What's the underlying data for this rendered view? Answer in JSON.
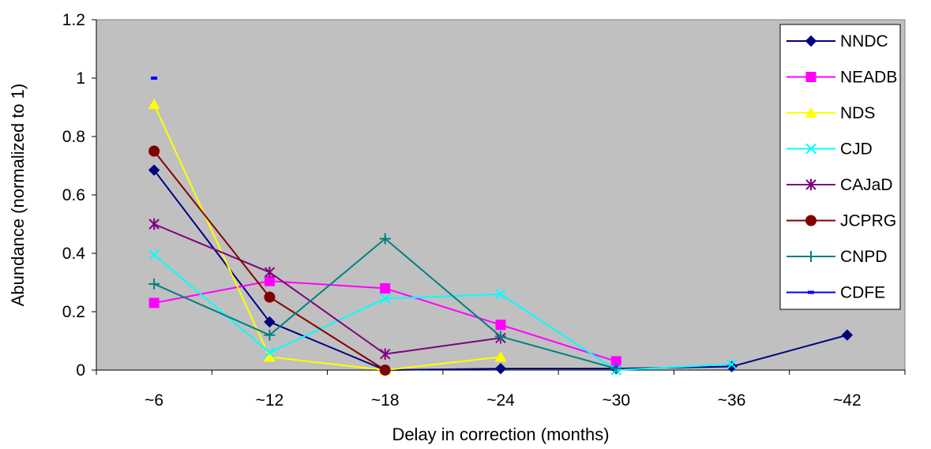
{
  "chart_data": {
    "type": "line",
    "title": "",
    "xlabel": "Delay in correction (months)",
    "ylabel": "Abundance (normalized to 1)",
    "categories": [
      "~6",
      "~12",
      "~18",
      "~24",
      "~30",
      "~36",
      "~42"
    ],
    "ylim": [
      0,
      1.2
    ],
    "yticks": [
      "0",
      "0.2",
      "0.4",
      "0.6",
      "0.8",
      "1",
      "1.2"
    ],
    "grid": false,
    "plot_background": "#c0c0c0",
    "legend_position": "top-right",
    "series": [
      {
        "name": "NNDC",
        "color": "#000080",
        "marker": "diamond",
        "values": [
          0.685,
          0.165,
          0.0,
          0.005,
          0.005,
          0.012,
          0.12
        ]
      },
      {
        "name": "NEADB",
        "color": "#ff00ff",
        "marker": "square",
        "values": [
          0.23,
          0.305,
          0.28,
          0.155,
          0.03,
          null,
          null
        ]
      },
      {
        "name": "NDS",
        "color": "#ffff00",
        "marker": "triangle",
        "values": [
          0.91,
          0.045,
          0.0,
          0.045,
          null,
          null,
          null
        ]
      },
      {
        "name": "CJD",
        "color": "#00ffff",
        "marker": "x",
        "values": [
          0.395,
          0.06,
          0.245,
          0.26,
          0.0,
          0.02,
          null
        ]
      },
      {
        "name": "CAJaD",
        "color": "#800080",
        "marker": "star",
        "values": [
          0.5,
          0.335,
          0.055,
          0.11,
          null,
          null,
          null
        ]
      },
      {
        "name": "JCPRG",
        "color": "#800000",
        "marker": "circle",
        "values": [
          0.75,
          0.25,
          0.0,
          null,
          null,
          null,
          null
        ]
      },
      {
        "name": "CNPD",
        "color": "#008080",
        "marker": "plus",
        "values": [
          0.295,
          0.12,
          0.45,
          0.115,
          0.005,
          null,
          null
        ]
      },
      {
        "name": "CDFE",
        "color": "#0000ff",
        "marker": "dash",
        "values": [
          1.0,
          null,
          null,
          null,
          null,
          null,
          null
        ]
      }
    ]
  }
}
